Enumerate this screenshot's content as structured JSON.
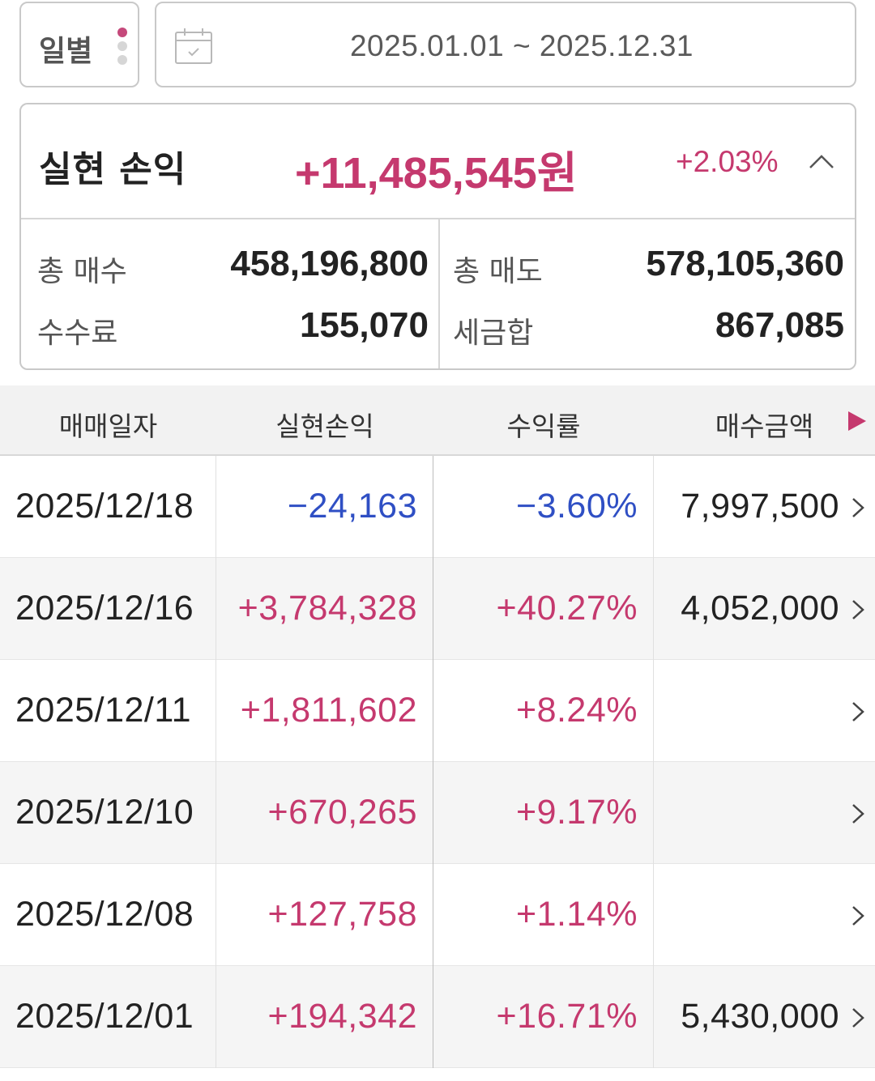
{
  "filter": {
    "period_label": "일별",
    "date_range": "2025.01.01 ~ 2025.12.31"
  },
  "summary": {
    "title": "실현 손익",
    "amount": "+11,485,545",
    "amount_unit": "원",
    "rate": "+2.03%",
    "total_buy_label": "총 매수",
    "total_buy_value": "458,196,800",
    "total_sell_label": "총 매도",
    "total_sell_value": "578,105,360",
    "fee_label": "수수료",
    "fee_value": "155,070",
    "tax_label": "세금합",
    "tax_value": "867,085",
    "positive_color": "#c5396e",
    "negative_color": "#2f4fc4"
  },
  "table": {
    "headers": [
      "매매일자",
      "실현손익",
      "수익률",
      "매수금액"
    ],
    "rows": [
      {
        "date": "2025/12/18",
        "pl": "−24,163",
        "rate": "−3.60%",
        "buy": "7,997,500",
        "sign": "neg"
      },
      {
        "date": "2025/12/16",
        "pl": "+3,784,328",
        "rate": "+40.27%",
        "buy": "4,052,000",
        "sign": "pos"
      },
      {
        "date": "2025/12/11",
        "pl": "+1,811,602",
        "rate": "+8.24%",
        "buy": "",
        "sign": "pos"
      },
      {
        "date": "2025/12/10",
        "pl": "+670,265",
        "rate": "+9.17%",
        "buy": "",
        "sign": "pos"
      },
      {
        "date": "2025/12/08",
        "pl": "+127,758",
        "rate": "+1.14%",
        "buy": "",
        "sign": "pos"
      },
      {
        "date": "2025/12/01",
        "pl": "+194,342",
        "rate": "+16.71%",
        "buy": "5,430,000",
        "sign": "pos"
      }
    ]
  },
  "icons": {
    "period_menu": "vertical-dots-icon",
    "calendar": "calendar-icon",
    "collapse": "chevron-up-icon",
    "scroll_columns": "triangle-right-icon",
    "row_detail": "chevron-right-icon"
  }
}
